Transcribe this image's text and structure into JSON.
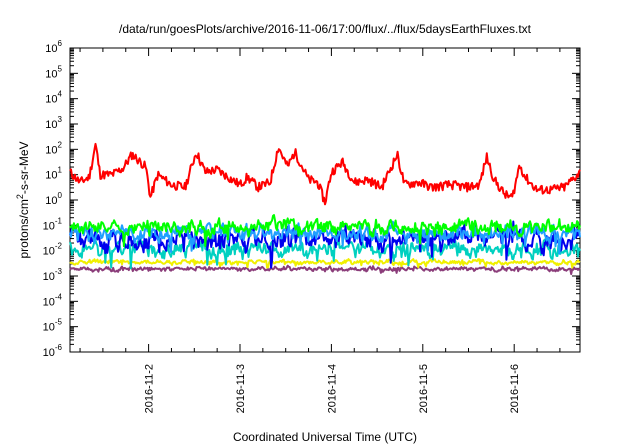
{
  "chart_data": {
    "type": "line",
    "title": "/data/run/goesPlots/archive/2016-11-06/17:00/flux/../flux/5daysEarthFluxes.txt",
    "xlabel": "Coordinated Universal Time (UTC)",
    "ylabel_parts": [
      "protons/cm",
      "2",
      "-s-sr-MeV"
    ],
    "y_scale": "log",
    "ylim_exp": [
      -6,
      6
    ],
    "y_tick_base": "10",
    "y_ticks_exp": [
      "-6",
      "-5",
      "-4",
      "-3",
      "-2",
      "-1",
      "0",
      "1",
      "2",
      "3",
      "4",
      "5",
      "6"
    ],
    "xlim_days": [
      1.14,
      6.72
    ],
    "x_ticks": [
      {
        "day": 2,
        "label": "2016-11-2"
      },
      {
        "day": 3,
        "label": "2016-11-3"
      },
      {
        "day": 4,
        "label": "2016-11-4"
      },
      {
        "day": 5,
        "label": "2016-11-5"
      },
      {
        "day": 6,
        "label": "2016-11-6"
      }
    ],
    "grid": false,
    "legend": "none",
    "series": [
      {
        "color": "#ff0000",
        "base": 1.0,
        "amp": 0.55,
        "noise": 0.18,
        "seed": 11,
        "anchors": [
          [
            1.14,
            1.1
          ],
          [
            1.25,
            0.7
          ],
          [
            1.35,
            0.9
          ],
          [
            1.42,
            2.2
          ],
          [
            1.47,
            1.0
          ],
          [
            1.6,
            1.0
          ],
          [
            1.72,
            1.25
          ],
          [
            1.82,
            1.8
          ],
          [
            1.97,
            1.3
          ],
          [
            2.02,
            0.1
          ],
          [
            2.1,
            1.0
          ],
          [
            2.25,
            0.6
          ],
          [
            2.4,
            0.5
          ],
          [
            2.52,
            1.9
          ],
          [
            2.62,
            1.1
          ],
          [
            2.75,
            1.2
          ],
          [
            2.85,
            0.95
          ],
          [
            3.0,
            0.6
          ],
          [
            3.08,
            0.9
          ],
          [
            3.2,
            0.5
          ],
          [
            3.33,
            0.7
          ],
          [
            3.42,
            2.1
          ],
          [
            3.52,
            1.3
          ],
          [
            3.6,
            1.9
          ],
          [
            3.75,
            0.8
          ],
          [
            3.85,
            0.7
          ],
          [
            3.93,
            -0.1
          ],
          [
            4.0,
            1.1
          ],
          [
            4.12,
            1.5
          ],
          [
            4.25,
            0.7
          ],
          [
            4.4,
            0.8
          ],
          [
            4.55,
            0.5
          ],
          [
            4.72,
            1.8
          ],
          [
            4.8,
            0.6
          ],
          [
            4.95,
            0.7
          ],
          [
            5.1,
            0.5
          ],
          [
            5.3,
            0.6
          ],
          [
            5.48,
            0.5
          ],
          [
            5.62,
            0.6
          ],
          [
            5.7,
            1.7
          ],
          [
            5.78,
            0.8
          ],
          [
            5.9,
            0.2
          ],
          [
            5.98,
            0.1
          ],
          [
            6.06,
            1.4
          ],
          [
            6.12,
            0.9
          ],
          [
            6.25,
            0.4
          ],
          [
            6.4,
            0.4
          ],
          [
            6.55,
            0.5
          ],
          [
            6.72,
            1.1
          ]
        ]
      },
      {
        "color": "#00ff00",
        "base": -1.05,
        "amp": 0.2,
        "noise": 0.12,
        "seed": 23
      },
      {
        "color": "#1f9fff",
        "base": -1.3,
        "amp": 0.22,
        "noise": 0.14,
        "seed": 31
      },
      {
        "color": "#0000ee",
        "base": -1.55,
        "amp": 0.28,
        "noise": 0.18,
        "seed": 37
      },
      {
        "color": "#00d0c0",
        "base": -1.95,
        "amp": 0.22,
        "noise": 0.14,
        "seed": 41
      },
      {
        "color": "#f0f000",
        "base": -2.45,
        "amp": 0.06,
        "noise": 0.04,
        "seed": 53
      },
      {
        "color": "#8b3d7a",
        "base": -2.72,
        "amp": 0.05,
        "noise": 0.05,
        "seed": 59
      }
    ]
  }
}
